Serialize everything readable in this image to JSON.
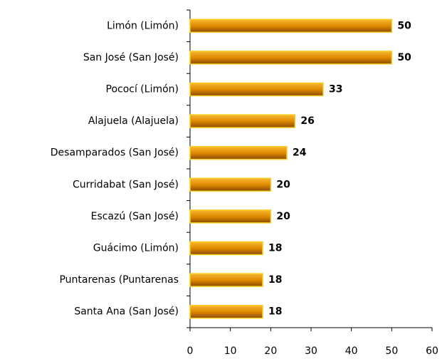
{
  "chart_data": {
    "type": "bar",
    "orientation": "horizontal",
    "categories": [
      "Limón (Limón)",
      "San José (San José)",
      "Pococí (Limón)",
      "Alajuela (Alajuela)",
      "Desamparados (San José)",
      "Curridabat (San José)",
      "Escazú (San José)",
      "Guácimo (Limón)",
      "Puntarenas (Puntarenas",
      "Santa Ana (San José)"
    ],
    "values": [
      50,
      50,
      33,
      26,
      24,
      20,
      20,
      18,
      18,
      18
    ],
    "color": "#e08a00",
    "xlim": [
      0,
      60
    ],
    "xticks": [
      0,
      10,
      20,
      30,
      40,
      50,
      60
    ],
    "grid": false
  }
}
